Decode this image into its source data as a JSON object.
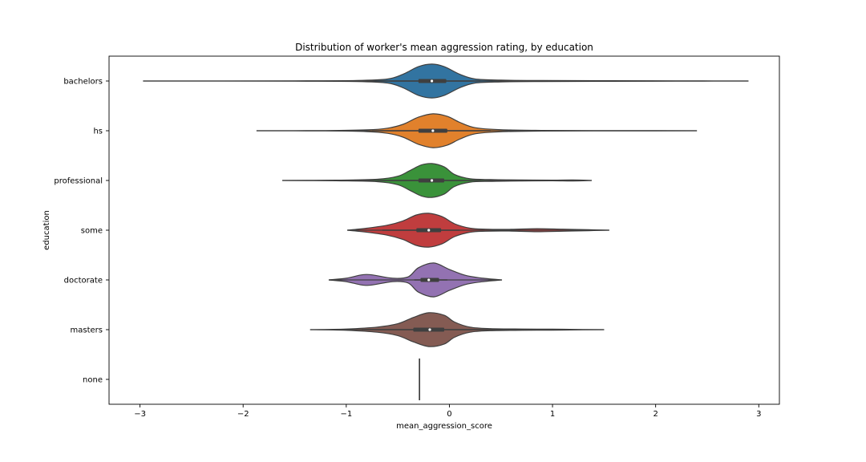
{
  "chart_data": {
    "type": "violin",
    "title": "Distribution of worker's mean aggression rating, by education",
    "xlabel": "mean_aggression_score",
    "ylabel": "education",
    "xlim": [
      -3.3,
      3.2
    ],
    "xticks": [
      -3,
      -2,
      -1,
      0,
      1,
      2,
      3
    ],
    "xtick_labels": [
      "−3",
      "−2",
      "−1",
      "0",
      "1",
      "2",
      "3"
    ],
    "grid": false,
    "legend": "none",
    "categories": [
      "bachelors",
      "hs",
      "professional",
      "some",
      "doctorate",
      "masters",
      "none"
    ],
    "violins": [
      {
        "category": "bachelors",
        "color": "#3274a1",
        "min": -2.97,
        "q1": -0.3,
        "median": -0.17,
        "q3": -0.03,
        "max": 2.9,
        "whisker_low": -0.9,
        "whisker_high": 0.3,
        "density_x": [
          -2.97,
          -1.5,
          -0.9,
          -0.6,
          -0.45,
          -0.3,
          -0.17,
          -0.05,
          0.1,
          0.25,
          0.5,
          0.9,
          1.5,
          2.2,
          2.9
        ],
        "density_w": [
          0.0,
          0.01,
          0.03,
          0.12,
          0.4,
          0.85,
          1.0,
          0.85,
          0.4,
          0.12,
          0.05,
          0.03,
          0.02,
          0.01,
          0.0
        ]
      },
      {
        "category": "hs",
        "color": "#e1812c",
        "min": -1.87,
        "q1": -0.3,
        "median": -0.16,
        "q3": -0.02,
        "max": 2.4,
        "whisker_low": -0.75,
        "whisker_high": 0.4,
        "density_x": [
          -1.87,
          -1.2,
          -0.8,
          -0.6,
          -0.45,
          -0.3,
          -0.16,
          -0.02,
          0.1,
          0.25,
          0.5,
          0.9,
          1.4,
          2.0,
          2.4
        ],
        "density_w": [
          0.0,
          0.01,
          0.05,
          0.15,
          0.38,
          0.8,
          1.0,
          0.85,
          0.5,
          0.18,
          0.06,
          0.02,
          0.01,
          0.01,
          0.0
        ]
      },
      {
        "category": "professional",
        "color": "#3a923a",
        "min": -1.62,
        "q1": -0.3,
        "median": -0.17,
        "q3": -0.05,
        "max": 1.38,
        "whisker_low": -0.7,
        "whisker_high": 0.3,
        "density_x": [
          -1.62,
          -1.1,
          -0.7,
          -0.5,
          -0.38,
          -0.27,
          -0.17,
          -0.05,
          0.05,
          0.2,
          0.4,
          0.7,
          1.0,
          1.2,
          1.38
        ],
        "density_w": [
          0.0,
          0.02,
          0.07,
          0.25,
          0.6,
          0.92,
          1.0,
          0.8,
          0.35,
          0.1,
          0.05,
          0.03,
          0.02,
          0.03,
          0.0
        ]
      },
      {
        "category": "some",
        "color": "#c03d3e",
        "min": -0.99,
        "q1": -0.32,
        "median": -0.2,
        "q3": -0.08,
        "max": 1.55,
        "whisker_low": -0.65,
        "whisker_high": 0.1,
        "density_x": [
          -0.99,
          -0.8,
          -0.6,
          -0.45,
          -0.32,
          -0.2,
          -0.07,
          0.05,
          0.2,
          0.35,
          0.6,
          0.85,
          1.1,
          1.35,
          1.55
        ],
        "density_w": [
          0.0,
          0.12,
          0.3,
          0.55,
          0.9,
          1.0,
          0.8,
          0.38,
          0.12,
          0.06,
          0.05,
          0.09,
          0.06,
          0.03,
          0.0
        ]
      },
      {
        "category": "doctorate",
        "color": "#9372b2",
        "min": -1.17,
        "q1": -0.28,
        "median": -0.2,
        "q3": -0.1,
        "max": 0.51,
        "whisker_low": -0.34,
        "whisker_high": -0.02,
        "density_x": [
          -1.17,
          -1.0,
          -0.85,
          -0.75,
          -0.55,
          -0.4,
          -0.3,
          -0.15,
          0.0,
          0.15,
          0.3,
          0.51
        ],
        "density_w": [
          0.0,
          0.1,
          0.3,
          0.3,
          0.1,
          0.18,
          0.72,
          1.0,
          0.62,
          0.28,
          0.12,
          0.0
        ]
      },
      {
        "category": "masters",
        "color": "#845b53",
        "min": -1.35,
        "q1": -0.35,
        "median": -0.19,
        "q3": -0.05,
        "max": 1.5,
        "whisker_low": -0.85,
        "whisker_high": 0.5,
        "density_x": [
          -1.35,
          -1.0,
          -0.7,
          -0.5,
          -0.35,
          -0.2,
          -0.05,
          0.05,
          0.2,
          0.4,
          0.7,
          1.0,
          1.3,
          1.5
        ],
        "density_w": [
          0.0,
          0.04,
          0.15,
          0.35,
          0.72,
          1.0,
          0.85,
          0.45,
          0.15,
          0.06,
          0.04,
          0.03,
          0.01,
          0.0
        ]
      },
      {
        "category": "none",
        "color": "#333333",
        "value": -0.29,
        "single_point": true
      }
    ]
  }
}
